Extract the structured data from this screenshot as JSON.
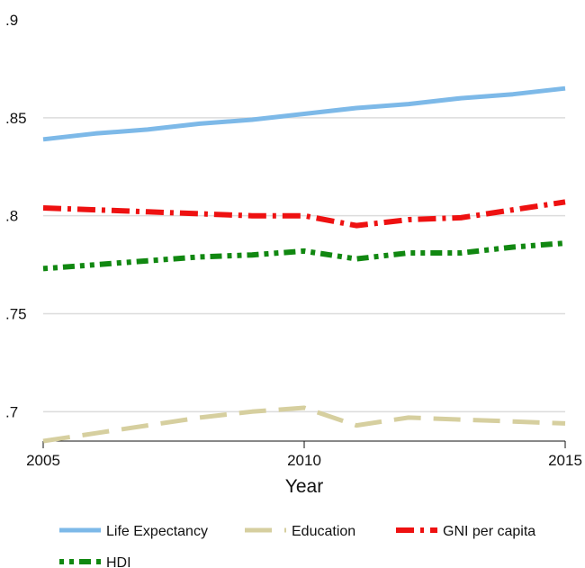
{
  "chart_data": {
    "type": "line",
    "title": "",
    "xlabel": "Year",
    "ylabel": "",
    "xlim": [
      2005,
      2015
    ],
    "ylim": [
      0.685,
      0.9
    ],
    "x_ticks": [
      2005,
      2010,
      2015
    ],
    "x_tick_labels": [
      "2005",
      "2010",
      "2015"
    ],
    "y_ticks": [
      0.7,
      0.75,
      0.8,
      0.85,
      0.9
    ],
    "y_tick_labels": [
      ".7",
      ".75",
      ".8",
      ".85",
      ".9"
    ],
    "grid": true,
    "legend_position": "bottom",
    "x": [
      2005,
      2006,
      2007,
      2008,
      2009,
      2010,
      2011,
      2012,
      2013,
      2014,
      2015
    ],
    "series": [
      {
        "name": "Life Expectancy",
        "color": "#7db9e8",
        "style": "solid",
        "values": [
          0.839,
          0.842,
          0.844,
          0.847,
          0.849,
          0.852,
          0.855,
          0.857,
          0.86,
          0.862,
          0.865
        ]
      },
      {
        "name": "Education",
        "color": "#d6cf9f",
        "style": "longdash",
        "values": [
          0.685,
          0.689,
          0.693,
          0.697,
          0.7,
          0.702,
          0.693,
          0.697,
          0.696,
          0.695,
          0.694
        ]
      },
      {
        "name": "GNI per capita",
        "color": "#ee1111",
        "style": "dashdot",
        "values": [
          0.804,
          0.803,
          0.802,
          0.801,
          0.8,
          0.8,
          0.795,
          0.798,
          0.799,
          0.803,
          0.807
        ]
      },
      {
        "name": "HDI",
        "color": "#118811",
        "style": "dotdash",
        "values": [
          0.773,
          0.775,
          0.777,
          0.779,
          0.78,
          0.782,
          0.778,
          0.781,
          0.781,
          0.784,
          0.786
        ]
      }
    ]
  }
}
